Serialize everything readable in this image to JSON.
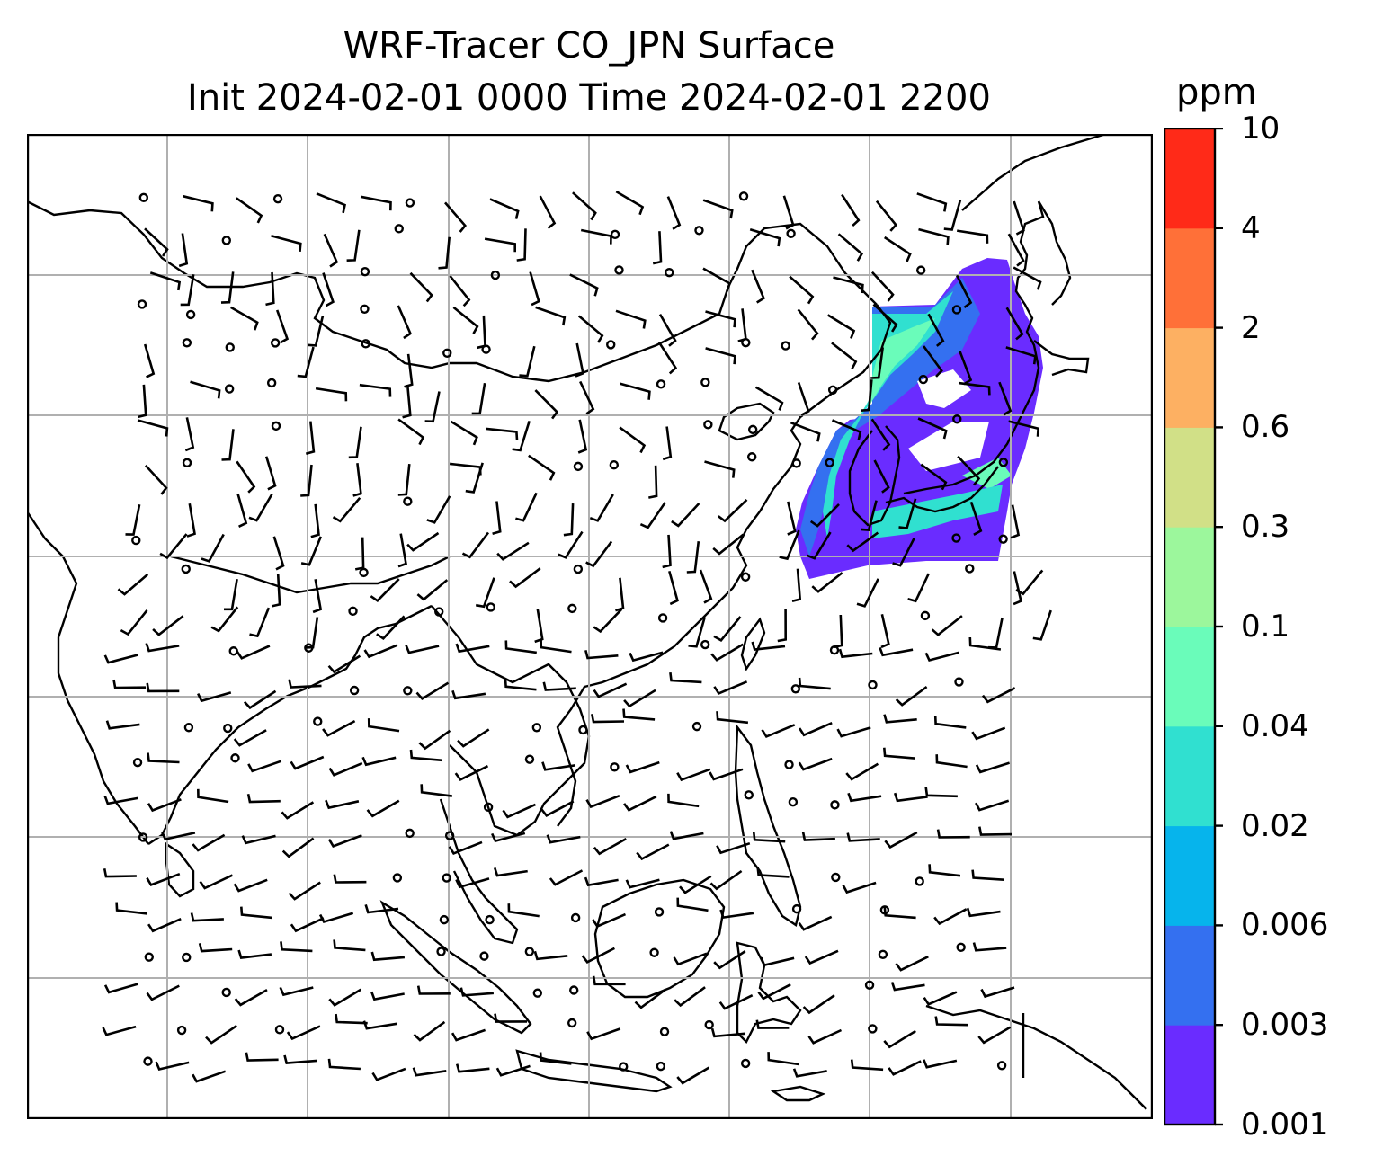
{
  "title": {
    "line1": "WRF-Tracer CO_JPN Surface",
    "line2": "Init 2024-02-01 0000 Time 2024-02-01 2200"
  },
  "colorbar": {
    "unit": "ppm",
    "levels": [
      "0.001",
      "0.003",
      "0.006",
      "0.02",
      "0.04",
      "0.1",
      "0.3",
      "0.6",
      "2",
      "4",
      "10"
    ],
    "colors": [
      "#6a2cff",
      "#3470f0",
      "#06b4ec",
      "#30e0d0",
      "#6afcba",
      "#9cf79c",
      "#d1e087",
      "#fdb062",
      "#ff7038",
      "#ff2a18"
    ]
  },
  "map": {
    "projection": "regional lat-lon",
    "gridlines": true,
    "grid_color": "#b0b0b0",
    "coast_color": "#000000",
    "field": "CO_JPN tracer concentration at surface",
    "plume_region": "Japan / Korea / East China Sea",
    "barbs": "wind barbs and calm circles"
  }
}
